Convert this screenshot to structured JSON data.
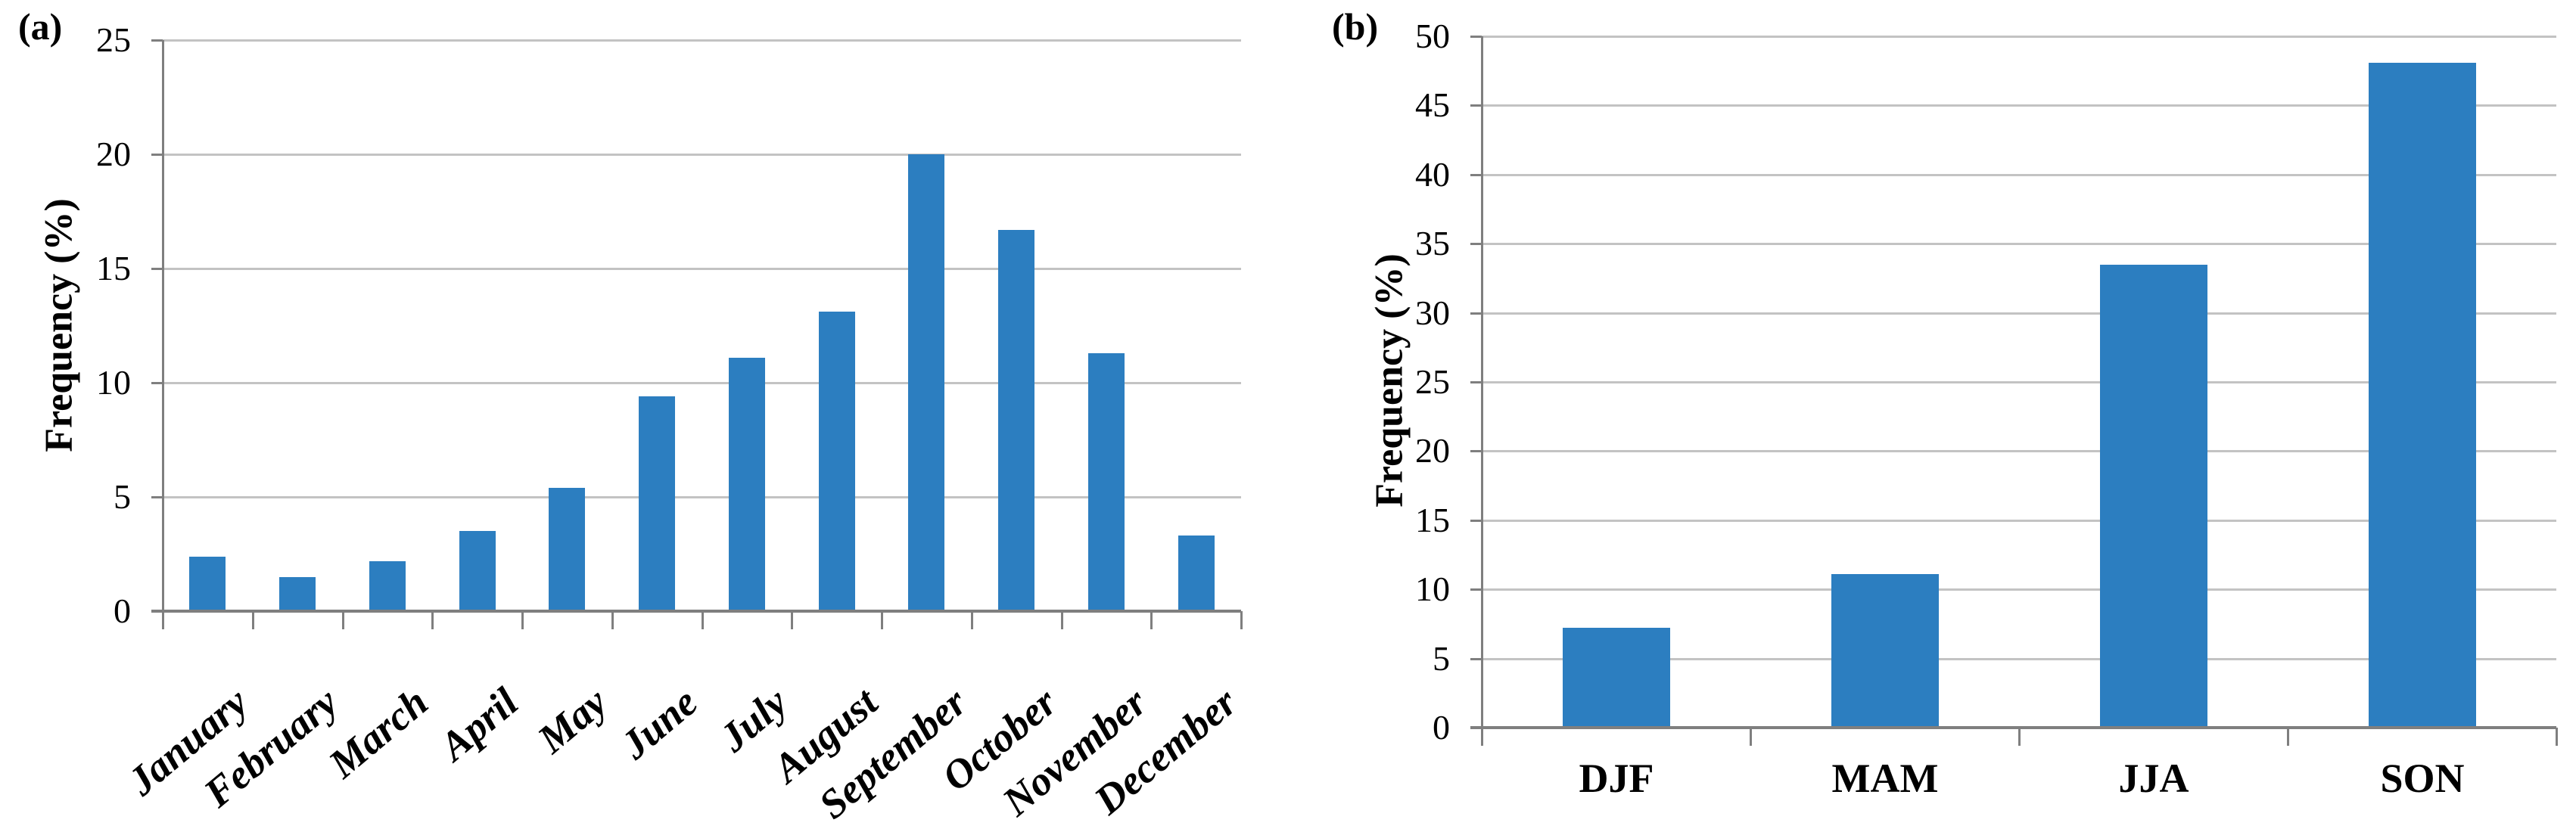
{
  "colors": {
    "bar": "#2C7EC0",
    "gridline": "#C3C3C3",
    "axis": "#7F7F7F",
    "text": "#000000",
    "background": "#FFFFFF"
  },
  "chart_data": [
    {
      "id": "a",
      "panel": "(a)",
      "type": "bar",
      "title": "",
      "xlabel": "",
      "ylabel": "Frequency (%)",
      "categories": [
        "January",
        "February",
        "March",
        "April",
        "May",
        "June",
        "July",
        "August",
        "September",
        "October",
        "November",
        "December"
      ],
      "values": [
        2.4,
        1.5,
        2.2,
        3.5,
        5.4,
        9.4,
        11.1,
        13.1,
        20.0,
        16.7,
        11.3,
        3.3
      ],
      "ylim": [
        0,
        25
      ],
      "ytick_step": 5,
      "grid": true,
      "legend": null,
      "bar_color": "#2C7EC0",
      "x_tick_label_rotation_deg": -40,
      "x_tick_label_style": "bold italic"
    },
    {
      "id": "b",
      "panel": "(b)",
      "type": "bar",
      "title": "",
      "xlabel": "",
      "ylabel": "Frequency (%)",
      "categories": [
        "DJF",
        "MAM",
        "JJA",
        "SON"
      ],
      "values": [
        7.2,
        11.1,
        33.5,
        48.1
      ],
      "ylim": [
        0,
        50
      ],
      "ytick_step": 5,
      "grid": true,
      "legend": null,
      "bar_color": "#2C7EC0",
      "x_tick_label_rotation_deg": 0,
      "x_tick_label_style": "bold"
    }
  ]
}
